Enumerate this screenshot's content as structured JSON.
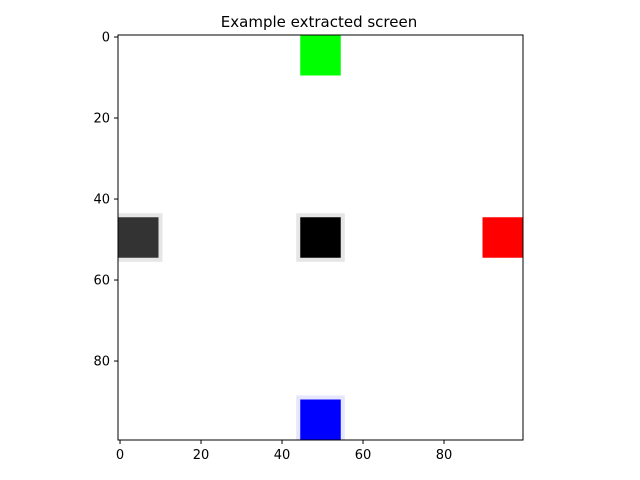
{
  "chart_data": {
    "type": "heatmap",
    "title": "Example extracted screen",
    "xlabel": "",
    "ylabel": "",
    "xlim": [
      -0.5,
      99.5
    ],
    "ylim": [
      99.5,
      -0.5
    ],
    "x_ticks": [
      0,
      20,
      40,
      60,
      80
    ],
    "y_ticks": [
      0,
      20,
      40,
      60,
      80
    ],
    "x_tick_labels": [
      "0",
      "20",
      "40",
      "60",
      "80"
    ],
    "y_tick_labels": [
      "0",
      "20",
      "40",
      "60",
      "80"
    ],
    "grid": false,
    "background_color": "#ffffff",
    "blocks": [
      {
        "name": "green-square",
        "x": [
          45,
          54
        ],
        "y": [
          0,
          9
        ],
        "color": "#00ff00",
        "halo": false
      },
      {
        "name": "gray-square",
        "x": [
          0,
          9
        ],
        "y": [
          45,
          54
        ],
        "color": "#333333",
        "halo": true,
        "halo_color": "#e6e6e6"
      },
      {
        "name": "black-square",
        "x": [
          45,
          54
        ],
        "y": [
          45,
          54
        ],
        "color": "#000000",
        "halo": true,
        "halo_color": "#e6e6e6"
      },
      {
        "name": "red-square",
        "x": [
          90,
          99
        ],
        "y": [
          45,
          54
        ],
        "color": "#ff0000",
        "halo": false
      },
      {
        "name": "blue-square",
        "x": [
          45,
          54
        ],
        "y": [
          90,
          99
        ],
        "color": "#0000ff",
        "halo": true,
        "halo_color": "#e6e6ff"
      }
    ]
  }
}
